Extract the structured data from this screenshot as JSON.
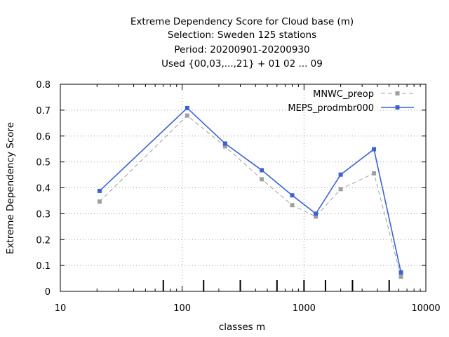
{
  "chart_data": {
    "type": "line",
    "title_lines": [
      "Extreme Dependency Score  for Cloud base (m)",
      "Selection: Sweden    125 stations",
      "Period: 20200901-20200930",
      "Used {00,03,...,21} + 01 02 ... 09"
    ],
    "xlabel": "classes m",
    "ylabel": "Extreme Dependency Score",
    "x_scale": "log",
    "xlim": [
      10,
      10000
    ],
    "ylim": [
      0,
      0.8
    ],
    "x_ticks": [
      10,
      100,
      1000,
      10000
    ],
    "x_tick_labels": [
      "10",
      "100",
      "1000",
      "10000"
    ],
    "y_ticks": [
      0,
      0.1,
      0.2,
      0.3,
      0.4,
      0.5,
      0.6,
      0.7,
      0.8
    ],
    "y_tick_labels": [
      "0",
      "0.1",
      "0.2",
      "0.3",
      "0.4",
      "0.5",
      "0.6",
      "0.7",
      "0.8"
    ],
    "grid": true,
    "legend_position": "top-right",
    "threshold_marks_x": [
      70,
      150,
      300,
      600,
      1000,
      1500,
      2500,
      5000
    ],
    "series": [
      {
        "name": "MNWC_preop",
        "color": "#a0a0a0",
        "style": "dashed",
        "x": [
          21,
          110,
          225,
          450,
          800,
          1250,
          2000,
          3750,
          6250
        ],
        "values": [
          0.347,
          0.679,
          0.56,
          0.433,
          0.333,
          0.289,
          0.395,
          0.456,
          0.057
        ]
      },
      {
        "name": "MEPS_prodmbr000",
        "color": "#3a63d0",
        "style": "solid",
        "x": [
          21,
          110,
          225,
          450,
          800,
          1250,
          2000,
          3750,
          6250
        ],
        "values": [
          0.388,
          0.708,
          0.571,
          0.468,
          0.371,
          0.3,
          0.451,
          0.549,
          0.073
        ]
      }
    ]
  }
}
